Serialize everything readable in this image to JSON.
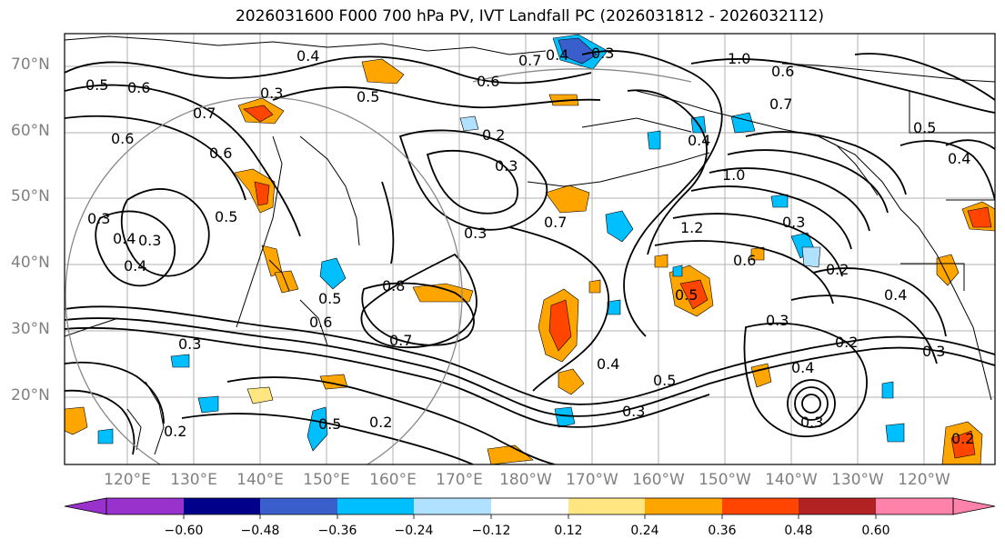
{
  "title": "2026031600 F000 700 hPa PV, IVT Landfall PC (2026031812 - 2026032112)",
  "lat_labels": [
    "70°N",
    "60°N",
    "50°N",
    "40°N",
    "30°N",
    "20°N"
  ],
  "lon_labels": [
    "120°E",
    "130°E",
    "140°E",
    "150°E",
    "160°E",
    "170°E",
    "180°W",
    "170°W",
    "160°W",
    "150°W",
    "140°W",
    "130°W",
    "120°W"
  ],
  "colorbar": {
    "ticks": [
      "−0.60",
      "−0.48",
      "−0.36",
      "−0.24",
      "−0.12",
      "0.12",
      "0.24",
      "0.36",
      "0.48",
      "0.60"
    ],
    "colors": [
      "#9932CC",
      "#00008B",
      "#3A5FCD",
      "#00BFFF",
      "#B0E2FF",
      "#FFFFFF",
      "#FFE680",
      "#FFA500",
      "#FF4500",
      "#B22222",
      "#FF82AB"
    ]
  },
  "contour_labels": [
    "0.5",
    "0.6",
    "0.4",
    "0.3",
    "0.5",
    "0.6",
    "0.7",
    "0.4",
    "0.3",
    "1.0",
    "0.6",
    "0.7",
    "0.6",
    "0.2",
    "0.3",
    "0.6",
    "0.5",
    "0.3",
    "0.4",
    "1.0",
    "1.2",
    "0.3",
    "0.4",
    "0.5",
    "0.2",
    "0.8",
    "0.7",
    "0.4",
    "0.3",
    "0.5",
    "0.3",
    "0.2",
    "0.5",
    "0.2",
    "0.3",
    "0.2",
    "0.4",
    "0.3",
    "0.2",
    "0.7",
    "0.6",
    "0.5",
    "0.4",
    "0.3",
    "0.4",
    "0.5",
    "0.6",
    "0.3",
    "0.7",
    "0.4",
    "0.3"
  ]
}
